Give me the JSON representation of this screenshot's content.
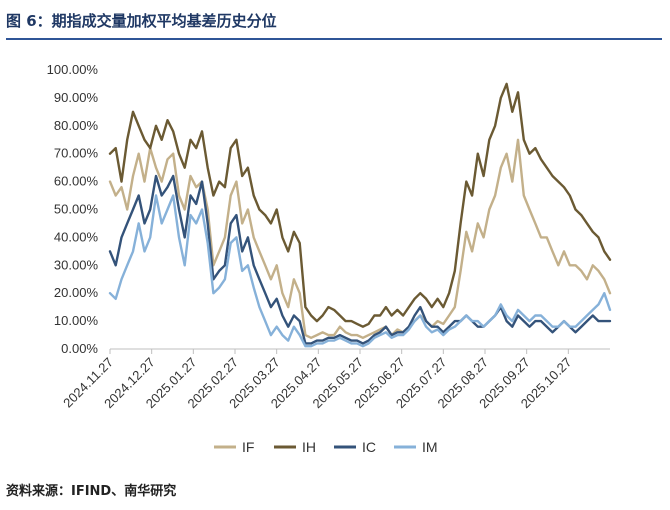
{
  "figure": {
    "title": "图 6：期指成交量加权平均基差历史分位",
    "source": "资料来源：IFIND、南华研究"
  },
  "chart_data": {
    "type": "line",
    "title": "",
    "xlabel": "",
    "ylabel": "",
    "ylim": [
      0,
      1
    ],
    "y_ticks": [
      "0.00%",
      "10.00%",
      "20.00%",
      "30.00%",
      "40.00%",
      "50.00%",
      "60.00%",
      "70.00%",
      "80.00%",
      "90.00%",
      "100.00%"
    ],
    "x_ticks": [
      "2024.11.27",
      "2024.12.27",
      "2025.01.27",
      "2025.02.27",
      "2025.03.27",
      "2025.04.27",
      "2025.05.27",
      "2025.06.27",
      "2025.07.27",
      "2025.08.27",
      "2025.09.27",
      "2025.10.27"
    ],
    "grid": false,
    "legend_position": "bottom",
    "x": [
      0,
      4,
      8,
      12,
      16,
      20,
      24,
      28,
      32,
      36,
      40,
      44,
      48,
      52,
      56,
      60,
      64,
      68,
      72,
      76,
      80,
      84,
      88,
      92,
      96,
      100,
      104,
      108,
      112,
      116,
      120,
      124,
      128,
      132,
      136,
      140,
      144,
      148,
      152,
      156,
      160,
      164,
      168,
      172,
      176,
      180,
      184,
      188,
      192,
      196,
      200,
      204,
      208,
      212,
      216,
      220,
      224,
      228,
      232,
      236,
      240,
      244,
      248,
      252,
      256,
      260,
      264,
      268,
      272,
      276,
      280,
      284,
      288,
      292,
      296,
      300,
      304,
      308,
      312,
      316,
      320,
      324,
      328,
      332,
      336,
      340,
      344,
      348
    ],
    "series": [
      {
        "name": "IF",
        "color": "#c3b08a",
        "values": [
          0.6,
          0.55,
          0.58,
          0.5,
          0.62,
          0.7,
          0.6,
          0.72,
          0.65,
          0.6,
          0.68,
          0.7,
          0.55,
          0.5,
          0.62,
          0.58,
          0.6,
          0.5,
          0.3,
          0.35,
          0.4,
          0.55,
          0.6,
          0.45,
          0.5,
          0.4,
          0.35,
          0.3,
          0.25,
          0.3,
          0.2,
          0.15,
          0.25,
          0.2,
          0.05,
          0.04,
          0.05,
          0.06,
          0.05,
          0.05,
          0.08,
          0.06,
          0.05,
          0.05,
          0.04,
          0.05,
          0.06,
          0.07,
          0.08,
          0.05,
          0.07,
          0.06,
          0.08,
          0.1,
          0.12,
          0.1,
          0.08,
          0.1,
          0.09,
          0.12,
          0.15,
          0.28,
          0.42,
          0.35,
          0.45,
          0.4,
          0.5,
          0.55,
          0.65,
          0.7,
          0.6,
          0.75,
          0.55,
          0.5,
          0.45,
          0.4,
          0.4,
          0.35,
          0.3,
          0.35,
          0.3,
          0.3,
          0.28,
          0.25,
          0.3,
          0.28,
          0.25,
          0.2
        ]
      },
      {
        "name": "IH",
        "color": "#6b5a33",
        "values": [
          0.7,
          0.72,
          0.6,
          0.75,
          0.85,
          0.8,
          0.75,
          0.72,
          0.8,
          0.75,
          0.82,
          0.78,
          0.7,
          0.65,
          0.75,
          0.72,
          0.78,
          0.65,
          0.55,
          0.6,
          0.58,
          0.72,
          0.75,
          0.62,
          0.65,
          0.55,
          0.5,
          0.48,
          0.45,
          0.5,
          0.4,
          0.35,
          0.42,
          0.38,
          0.15,
          0.12,
          0.1,
          0.12,
          0.15,
          0.14,
          0.12,
          0.1,
          0.1,
          0.09,
          0.08,
          0.09,
          0.12,
          0.12,
          0.15,
          0.12,
          0.14,
          0.12,
          0.15,
          0.18,
          0.2,
          0.18,
          0.15,
          0.18,
          0.15,
          0.2,
          0.28,
          0.45,
          0.6,
          0.55,
          0.7,
          0.62,
          0.75,
          0.8,
          0.9,
          0.95,
          0.85,
          0.92,
          0.75,
          0.7,
          0.72,
          0.68,
          0.65,
          0.62,
          0.6,
          0.58,
          0.55,
          0.5,
          0.48,
          0.45,
          0.42,
          0.4,
          0.35,
          0.32
        ]
      },
      {
        "name": "IC",
        "color": "#34537a",
        "values": [
          0.35,
          0.3,
          0.4,
          0.45,
          0.5,
          0.55,
          0.45,
          0.5,
          0.62,
          0.55,
          0.58,
          0.62,
          0.5,
          0.4,
          0.55,
          0.52,
          0.6,
          0.45,
          0.25,
          0.28,
          0.3,
          0.45,
          0.48,
          0.35,
          0.4,
          0.3,
          0.25,
          0.2,
          0.15,
          0.18,
          0.12,
          0.08,
          0.12,
          0.1,
          0.02,
          0.02,
          0.03,
          0.03,
          0.04,
          0.04,
          0.05,
          0.04,
          0.03,
          0.03,
          0.02,
          0.03,
          0.05,
          0.06,
          0.08,
          0.05,
          0.06,
          0.06,
          0.08,
          0.12,
          0.15,
          0.1,
          0.08,
          0.08,
          0.06,
          0.08,
          0.1,
          0.1,
          0.12,
          0.1,
          0.08,
          0.08,
          0.1,
          0.12,
          0.15,
          0.1,
          0.08,
          0.12,
          0.1,
          0.08,
          0.1,
          0.1,
          0.08,
          0.06,
          0.08,
          0.1,
          0.08,
          0.06,
          0.08,
          0.1,
          0.12,
          0.1,
          0.1,
          0.1
        ]
      },
      {
        "name": "IM",
        "color": "#86b1d9",
        "values": [
          0.2,
          0.18,
          0.25,
          0.3,
          0.35,
          0.45,
          0.35,
          0.4,
          0.55,
          0.45,
          0.5,
          0.55,
          0.4,
          0.3,
          0.48,
          0.45,
          0.5,
          0.38,
          0.2,
          0.22,
          0.25,
          0.38,
          0.4,
          0.28,
          0.3,
          0.22,
          0.15,
          0.1,
          0.05,
          0.08,
          0.05,
          0.03,
          0.08,
          0.05,
          0.01,
          0.01,
          0.02,
          0.02,
          0.03,
          0.03,
          0.04,
          0.03,
          0.02,
          0.02,
          0.01,
          0.02,
          0.04,
          0.05,
          0.06,
          0.04,
          0.05,
          0.05,
          0.07,
          0.1,
          0.12,
          0.08,
          0.06,
          0.07,
          0.05,
          0.07,
          0.08,
          0.1,
          0.12,
          0.1,
          0.1,
          0.08,
          0.1,
          0.12,
          0.16,
          0.12,
          0.1,
          0.14,
          0.12,
          0.1,
          0.12,
          0.12,
          0.1,
          0.08,
          0.08,
          0.1,
          0.08,
          0.08,
          0.1,
          0.12,
          0.14,
          0.16,
          0.2,
          0.14
        ]
      }
    ]
  }
}
